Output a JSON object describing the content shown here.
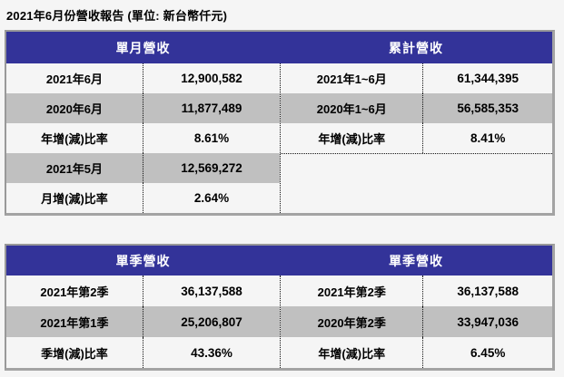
{
  "page": {
    "title": "2021年6月份營收報告  (單位: 新台幣仟元)"
  },
  "colors": {
    "header_bg": "#333399",
    "header_text": "#ffffff",
    "row_gray_bg": "#c0c0c0",
    "row_light_bg": "#f5f5f5",
    "outer_border": "#999999",
    "dotted_divider": "#111111"
  },
  "monthly_table": {
    "left_header": "單月營收",
    "right_header": "累計營收",
    "left_rows": [
      {
        "label": "2021年6月",
        "value": "12,900,582"
      },
      {
        "label": "2020年6月",
        "value": "11,877,489"
      },
      {
        "label": "年增(減)比率",
        "value": "8.61%"
      },
      {
        "label": "2021年5月",
        "value": "12,569,272"
      },
      {
        "label": "月增(減)比率",
        "value": "2.64%"
      }
    ],
    "right_rows": [
      {
        "label": "2021年1~6月",
        "value": "61,344,395"
      },
      {
        "label": "2020年1~6月",
        "value": "56,585,353"
      },
      {
        "label": "年增(減)比率",
        "value": "8.41%"
      }
    ]
  },
  "quarterly_table": {
    "left_header": "單季營收",
    "right_header": "單季營收",
    "left_rows": [
      {
        "label": "2021年第2季",
        "value": "36,137,588"
      },
      {
        "label": "2021年第1季",
        "value": "25,206,807"
      },
      {
        "label": "季增(減)比率",
        "value": "43.36%"
      }
    ],
    "right_rows": [
      {
        "label": "2021年第2季",
        "value": "36,137,588"
      },
      {
        "label": "2020年第2季",
        "value": "33,947,036"
      },
      {
        "label": "年增(減)比率",
        "value": "6.45%"
      }
    ]
  }
}
